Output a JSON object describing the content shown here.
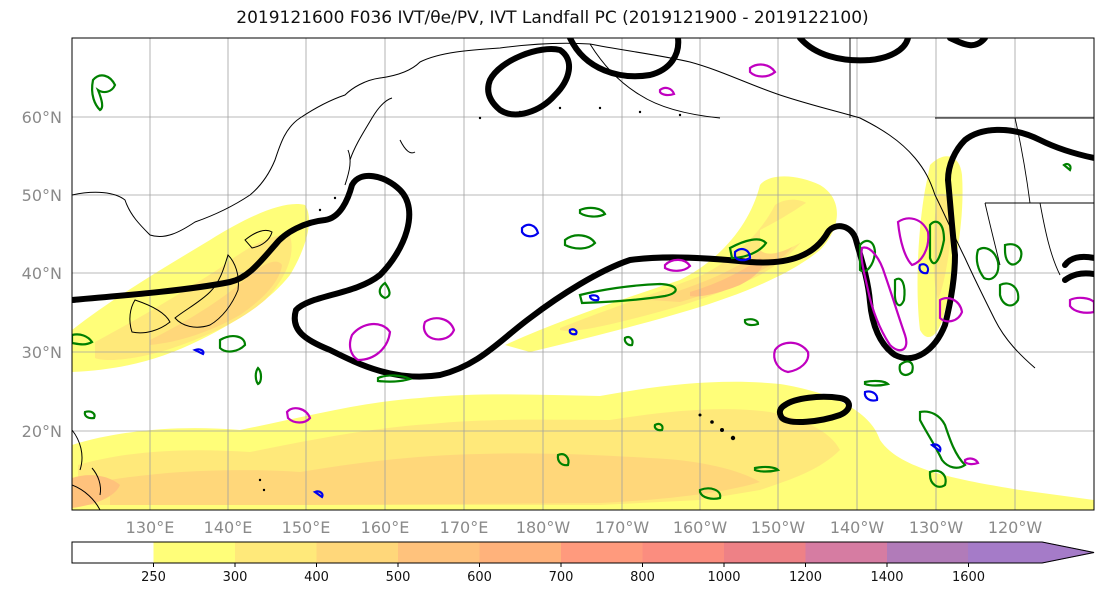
{
  "title": "2019121600 F036 IVT/θe/PV, IVT Landfall PC (2019121900 - 2019122100)",
  "latitude_labels": [
    "60°N",
    "50°N",
    "40°N",
    "30°N",
    "20°N"
  ],
  "longitude_labels": [
    "130°E",
    "140°E",
    "150°E",
    "160°E",
    "170°E",
    "180°W",
    "170°W",
    "160°W",
    "150°W",
    "140°W",
    "130°W",
    "120°W"
  ],
  "colorbar": {
    "ticks": [
      "250",
      "300",
      "400",
      "500",
      "600",
      "700",
      "800",
      "1000",
      "1200",
      "1400",
      "1600"
    ],
    "colors": [
      "#ffffff",
      "#fffe79",
      "#ffe97a",
      "#ffd77a",
      "#ffc27c",
      "#ffb27b",
      "#ff9a7d",
      "#fb8d7f",
      "#ee8186",
      "#d67ca2",
      "#b17bb9",
      "#a57bc8"
    ]
  },
  "legend_colors": {
    "ivt_contour": "#000000",
    "theta_e": "#008000",
    "pv_low": "#0000ee",
    "pv_high": "#c000c0"
  }
}
